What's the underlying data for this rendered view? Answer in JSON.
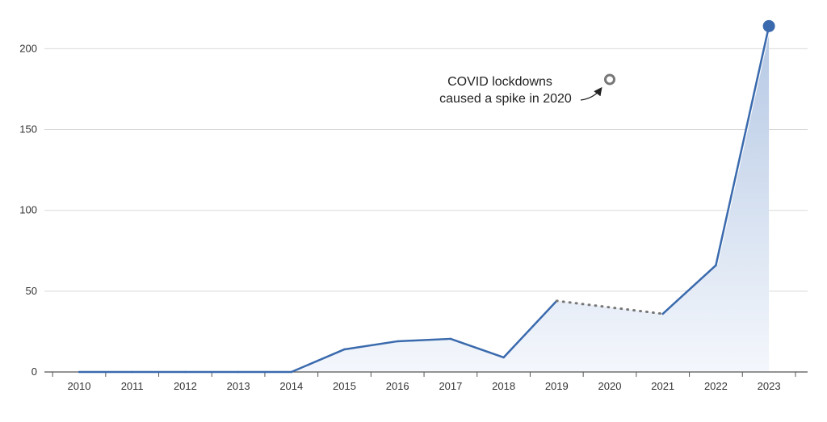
{
  "chart_data": {
    "type": "area",
    "title": "",
    "xlabel": "",
    "ylabel": "",
    "x": [
      "2010",
      "2011",
      "2012",
      "2013",
      "2014",
      "2015",
      "2016",
      "2017",
      "2018",
      "2019",
      "2020",
      "2021",
      "2022",
      "2023"
    ],
    "series": [
      {
        "values": [
          0,
          0,
          0,
          0,
          0,
          14,
          19,
          20.5,
          9,
          44,
          null,
          36,
          66,
          214
        ]
      }
    ],
    "missing_x": "2020",
    "interpolated_gap": {
      "from": "2019",
      "to": "2021",
      "style": "dotted"
    },
    "outlier": {
      "x": "2020",
      "y": 181,
      "marker": "hollow-circle"
    },
    "highlight_last": {
      "x": "2023",
      "y": 214,
      "marker": "filled-circle"
    },
    "annotation": {
      "lines": [
        "COVID lockdowns",
        "caused a spike in 2020"
      ],
      "target": "2020"
    },
    "ylim": [
      0,
      220
    ],
    "yticks": [
      0,
      50,
      100,
      150,
      200
    ],
    "grid": "horizontal",
    "legend": "none",
    "colors": {
      "line": "#3a6aad",
      "fill_top": "#b5c8e4",
      "fill_bottom": "#f4f7fc",
      "gap": "#777777",
      "outlier": "#777777",
      "grid": "#d9d9d9",
      "axis": "#555555"
    }
  }
}
